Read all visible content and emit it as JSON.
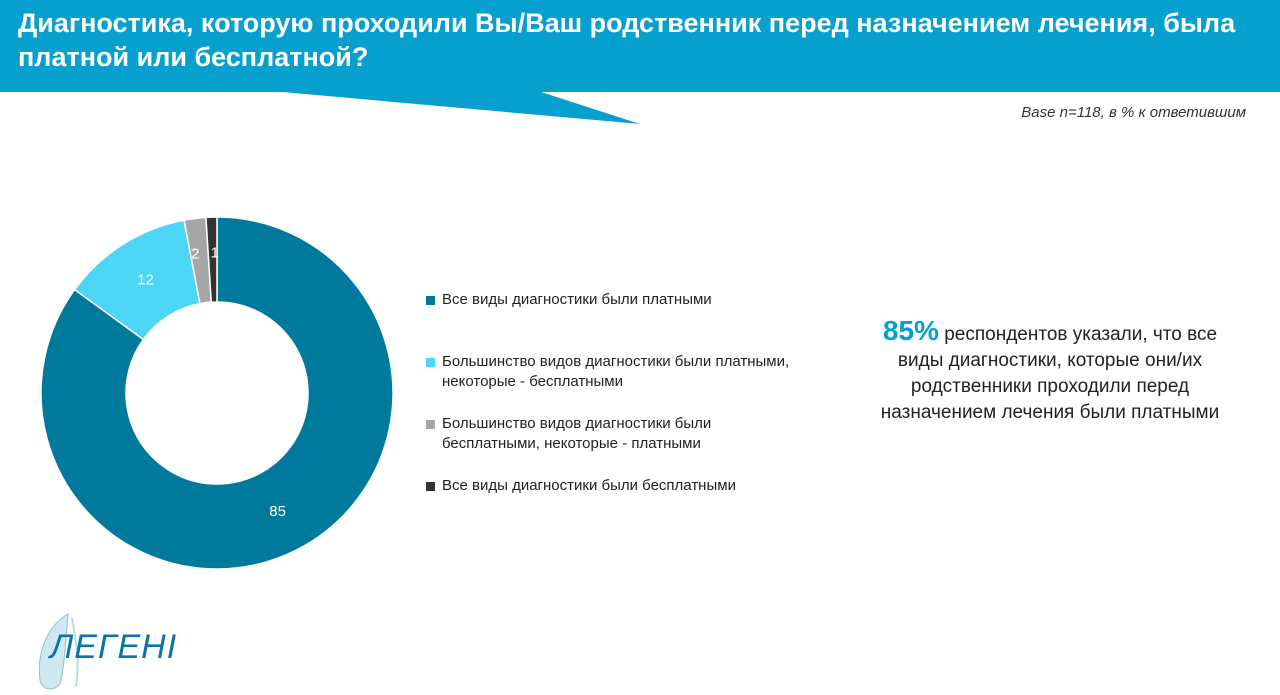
{
  "header": {
    "title": "Диагностика, которую проходили Вы/Ваш родственник перед назначением лечения, была платной или бесплатной?",
    "base_note": "Base n=118,  в % к ответившим"
  },
  "chart_data": {
    "type": "pie",
    "donut": true,
    "categories": [
      "Все виды диагностики были платными",
      "Большинство видов диагностики были платными, некоторые - бесплатными",
      "Большинство видов диагностики были бесплатными, некоторые - платными",
      "Все виды диагностики были бесплатными"
    ],
    "values": [
      85,
      12,
      2,
      1
    ],
    "colors": [
      "#007a9c",
      "#4dd5f5",
      "#a6a6a6",
      "#333333"
    ],
    "legend_position": "right"
  },
  "legend": {
    "items": [
      {
        "label": "Все виды диагностики были платными",
        "color": "#007a9c"
      },
      {
        "label": "Большинство видов диагностики были платными, некоторые - бесплатными",
        "color": "#4dd5f5"
      },
      {
        "label": "Большинство видов диагностики были бесплатными, некоторые - платными",
        "color": "#a6a6a6"
      },
      {
        "label": "Все виды диагностики были бесплатными",
        "color": "#333333"
      }
    ]
  },
  "callout": {
    "percent": "85%",
    "text": "респондентов указали, что все виды диагностики, которые они/их родственники проходили перед назначением лечения были платными"
  },
  "logo": {
    "text": "ЛЕГЕНІ"
  },
  "colors": {
    "banner": "#06a0cf",
    "accent": "#06a0cf"
  }
}
